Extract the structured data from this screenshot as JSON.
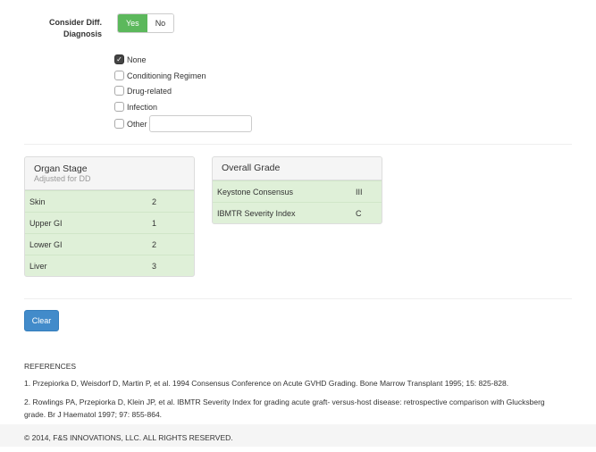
{
  "diff_dx": {
    "label": "Consider Diff. Diagnosis",
    "yes": "Yes",
    "no": "No",
    "selected": "Yes",
    "options": [
      {
        "label": "None",
        "checked": true
      },
      {
        "label": "Conditioning Regimen",
        "checked": false
      },
      {
        "label": "Drug-related",
        "checked": false
      },
      {
        "label": "Infection",
        "checked": false
      },
      {
        "label": "Other",
        "checked": false
      }
    ],
    "other_value": ""
  },
  "organ_stage": {
    "title": "Organ Stage",
    "subtitle": "Adjusted for DD",
    "rows": [
      {
        "k": "Skin",
        "v": "2"
      },
      {
        "k": "Upper GI",
        "v": "1"
      },
      {
        "k": "Lower GI",
        "v": "2"
      },
      {
        "k": "Liver",
        "v": "3"
      }
    ]
  },
  "overall_grade": {
    "title": "Overall Grade",
    "rows": [
      {
        "k": "Keystone Consensus",
        "v": "III"
      },
      {
        "k": "IBMTR Severity Index",
        "v": "C"
      }
    ]
  },
  "clear_label": "Clear",
  "references": {
    "heading": "REFERENCES",
    "items": [
      "1. Przepiorka D, Weisdorf D, Martin P, et al. 1994 Consensus Conference on Acute GVHD Grading. Bone Marrow Transplant 1995; 15: 825-828.",
      "2. Rowlings PA, Przepiorka D, Klein JP, et al. IBMTR Severity Index for grading acute graft- versus-host disease: retrospective comparison with Glucksberg grade. Br J Haematol 1997; 97: 855-864."
    ]
  },
  "footer": "© 2014, F&S INNOVATIONS, LLC. ALL RIGHTS RESERVED.",
  "colors": {
    "yes": "#5cb85c",
    "panel_body": "#dff0d8",
    "clear": "#428bca"
  }
}
